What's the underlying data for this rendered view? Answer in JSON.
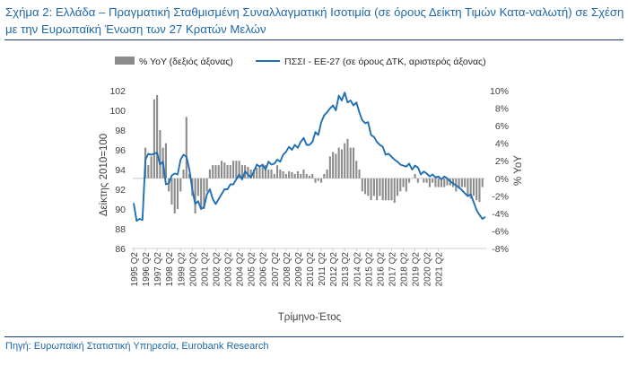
{
  "figure": {
    "title": "Σχήμα 2: Ελλάδα – Πραγματική Σταθμισμένη Συναλλαγματική Ισοτιμία (σε όρους Δείκτη Τιμών Κατα-ναλωτή) σε Σχέση με την Ευρωπαϊκή Ένωση των 27 Κρατών Μελών",
    "source": "Πηγή: Ευρωπαϊκή Στατιστική Υπηρεσία, Eurobank Research"
  },
  "colors": {
    "title": "#1f67a6",
    "line": "#1f6fb6",
    "bars": "#8c8c8c",
    "rule": "#1a3c6e"
  },
  "chart_data": {
    "type": "bar+line",
    "xlabel": "Τρίμηνο-Έτος",
    "ylabel_left": "Δείκτης 2010=100",
    "ylabel_right": "% YoY",
    "ylim_left": [
      86,
      102
    ],
    "ylim_right": [
      -8,
      10
    ],
    "left_ticks": [
      "86",
      "88",
      "90",
      "92",
      "94",
      "96",
      "98",
      "100",
      "102"
    ],
    "right_ticks": [
      "-8%",
      "-6%",
      "-4%",
      "-2%",
      "0%",
      "2%",
      "4%",
      "6%",
      "8%",
      "10%"
    ],
    "x_tick_labels": [
      "1995 Q2",
      "1996 Q2",
      "1997 Q2",
      "1998 Q2",
      "1999 Q2",
      "2000 Q2",
      "2001 Q2",
      "2002 Q2",
      "2003 Q2",
      "2004 Q2",
      "2005 Q2",
      "2006 Q2",
      "2007 Q2",
      "2008 Q2",
      "2009 Q2",
      "2010 Q2",
      "2011 Q2",
      "2012 Q2",
      "2013 Q2",
      "2014 Q2",
      "2015 Q2",
      "2016 Q2",
      "2017 Q2",
      "2018 Q2",
      "2019 Q2",
      "2020 Q2",
      "2021 Q2"
    ],
    "legend": {
      "placement": "top",
      "bars_label": "% YoY (δεξιός άξονας)",
      "line_label": "ΠΣΣΙ - ΕΕ-27 (σε όρους ΔΤΚ, αριστερός άξονας)"
    },
    "series": [
      {
        "name": "ΠΣΣΙ - ΕΕ-27 (σε όρους ΔΤΚ, αριστερός άξονας)",
        "axis": "left",
        "type": "line",
        "x_start": "1995 Q2",
        "frequency": "quarterly",
        "values": [
          90.6,
          88.8,
          89.0,
          88.9,
          95.0,
          95.6,
          95.5,
          95.6,
          95.7,
          94.5,
          94.8,
          92.5,
          92.6,
          93.4,
          93.6,
          93.5,
          95.0,
          95.5,
          95.3,
          94.0,
          92.0,
          90.5,
          90.8,
          90.0,
          90.2,
          91.5,
          92.0,
          91.0,
          90.5,
          91.0,
          91.5,
          92.0,
          92.0,
          92.5,
          92.5,
          93.0,
          93.5,
          93.0,
          93.8,
          93.5,
          93.2,
          93.8,
          94.5,
          94.3,
          94.5,
          94.0,
          94.8,
          94.5,
          94.6,
          95.0,
          94.8,
          95.5,
          95.8,
          96.3,
          96.0,
          96.5,
          96.2,
          96.8,
          97.2,
          96.5,
          96.5,
          96.8,
          97.8,
          97.5,
          98.8,
          99.5,
          99.8,
          100.2,
          100.5,
          100.0,
          101.5,
          101.0,
          101.8,
          100.8,
          101.0,
          100.5,
          100.8,
          99.8,
          99.0,
          98.7,
          98.8,
          97.5,
          97.3,
          96.8,
          96.5,
          96.3,
          95.5,
          95.6,
          95.3,
          95.0,
          94.8,
          94.5,
          94.4,
          94.3,
          94.6,
          94.0,
          94.4,
          94.2,
          93.5,
          93.8,
          93.6,
          93.3,
          93.5,
          93.2,
          93.3,
          93.0,
          93.3,
          93.1,
          92.8,
          92.6,
          92.4,
          92.2,
          91.9,
          91.6,
          91.3,
          91.5,
          90.7,
          89.9,
          89.4,
          89.0,
          89.2
        ]
      },
      {
        "name": "% YoY (δεξιός άξονας)",
        "axis": "right",
        "type": "bar",
        "x_start": "1995 Q2",
        "frequency": "quarterly",
        "values_percent": [
          0,
          0,
          0,
          0,
          3.5,
          1.5,
          2.5,
          9.0,
          9.5,
          5.5,
          3.5,
          4.0,
          -1.5,
          -3.0,
          -4.0,
          -3.5,
          -1.5,
          1.0,
          7.0,
          0.5,
          -2.0,
          -4.0,
          -2.0,
          -3.5,
          -3.5,
          -1.5,
          1.0,
          1.5,
          1.5,
          1.5,
          2.0,
          1.8,
          1.5,
          1.5,
          2.0,
          2.0,
          2.0,
          1.5,
          1.5,
          1.3,
          1.0,
          1.0,
          1.2,
          1.3,
          1.5,
          1.5,
          1.0,
          1.0,
          0.5,
          1.5,
          1.0,
          0.8,
          0.5,
          0.8,
          0.7,
          0.5,
          0.8,
          0.5,
          1.0,
          0.5,
          0.3,
          0.5,
          -0.5,
          -0.3,
          -0.5,
          0.5,
          1.0,
          2.5,
          3.0,
          2.8,
          3.5,
          3.3,
          4.0,
          4.5,
          3.5,
          3.5,
          2.0,
          1.0,
          -1.5,
          -1.8,
          -2.0,
          -2.5,
          -2.0,
          -2.5,
          -2.0,
          -2.5,
          -2.5,
          -2.5,
          -2.5,
          -2.8,
          -2.0,
          -1.5,
          -1.0,
          -1.5,
          -0.5,
          0.0,
          0.5,
          -0.5,
          0.0,
          -0.5,
          -0.5,
          -1.0,
          -0.5,
          -1.0,
          -1.0,
          -1.0,
          -1.0,
          -0.8,
          -0.8,
          -1.0,
          -1.5,
          -1.2,
          -1.0,
          -1.0,
          -2.0,
          -2.3,
          -2.0,
          -2.5,
          -2.7,
          -1.0
        ]
      }
    ]
  }
}
